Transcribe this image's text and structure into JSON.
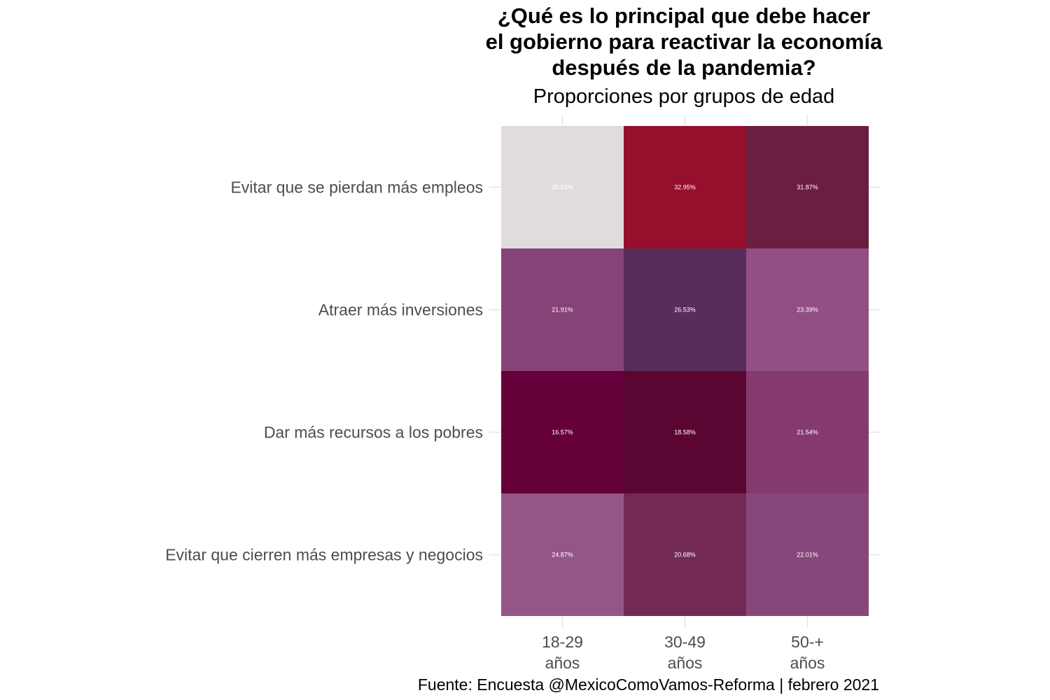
{
  "chart_data": {
    "type": "heatmap",
    "title_lines": [
      "¿Qué es lo principal que debe hacer",
      "el gobierno para reactivar la economía",
      "después de la pandemia?"
    ],
    "subtitle": "Proporciones por grupos de edad",
    "caption": "Fuente: Encuesta @MexicoComoVamos-Reforma | febrero 2021",
    "x_categories": [
      [
        "18-29",
        "años"
      ],
      [
        "30-49",
        "años"
      ],
      [
        "50-+",
        "años"
      ]
    ],
    "y_categories": [
      "Evitar que se pierdan más empleos",
      "Atraer más inversiones",
      "Dar más recursos a los pobres",
      "Evitar que cierren más empresas y negocios"
    ],
    "cells": [
      [
        {
          "value": 35.83,
          "label": "35.83%",
          "color": "#e0dcdc"
        },
        {
          "value": 32.95,
          "label": "32.95%",
          "color": "#960f2c"
        },
        {
          "value": 31.87,
          "label": "31.87%",
          "color": "#6c1e41"
        }
      ],
      [
        {
          "value": 21.91,
          "label": "21.91%",
          "color": "#864377"
        },
        {
          "value": 26.53,
          "label": "26.53%",
          "color": "#582d5c"
        },
        {
          "value": 23.39,
          "label": "23.39%",
          "color": "#914f83"
        }
      ],
      [
        {
          "value": 16.57,
          "label": "16.57%",
          "color": "#66003a"
        },
        {
          "value": 18.58,
          "label": "18.58%",
          "color": "#5b0632"
        },
        {
          "value": 21.54,
          "label": "21.54%",
          "color": "#853a6d"
        }
      ],
      [
        {
          "value": 24.87,
          "label": "24.87%",
          "color": "#935687"
        },
        {
          "value": 20.68,
          "label": "20.68%",
          "color": "#732956"
        },
        {
          "value": 22.01,
          "label": "22.01%",
          "color": "#88477b"
        }
      ]
    ],
    "grid": true,
    "legend": "none"
  }
}
